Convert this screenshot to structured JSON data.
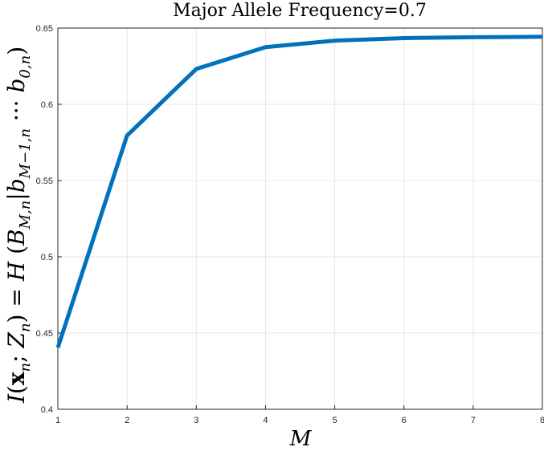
{
  "chart_data": {
    "type": "line",
    "title": "Major Allele Frequency=0.7",
    "xlabel": "M",
    "ylabel": "I(xn;Zn) = H(BM,n|bM-1,n ··· b0,n)",
    "x": [
      1,
      2,
      3,
      4,
      5,
      6,
      7,
      8
    ],
    "series": [
      {
        "values": [
          0.4405,
          0.5795,
          0.6232,
          0.6375,
          0.6418,
          0.6434,
          0.644,
          0.6443
        ]
      }
    ],
    "xlim": [
      1,
      8
    ],
    "ylim": [
      0.4,
      0.65
    ],
    "xticks": [
      "1",
      "2",
      "3",
      "4",
      "5",
      "6",
      "7",
      "8"
    ],
    "yticks": [
      "0.4",
      "0.45",
      "0.5",
      "0.55",
      "0.6",
      "0.65"
    ],
    "grid": true,
    "colors": {
      "line": "#0072bd",
      "grid": "#e6e6e6",
      "axis": "#262626"
    }
  }
}
